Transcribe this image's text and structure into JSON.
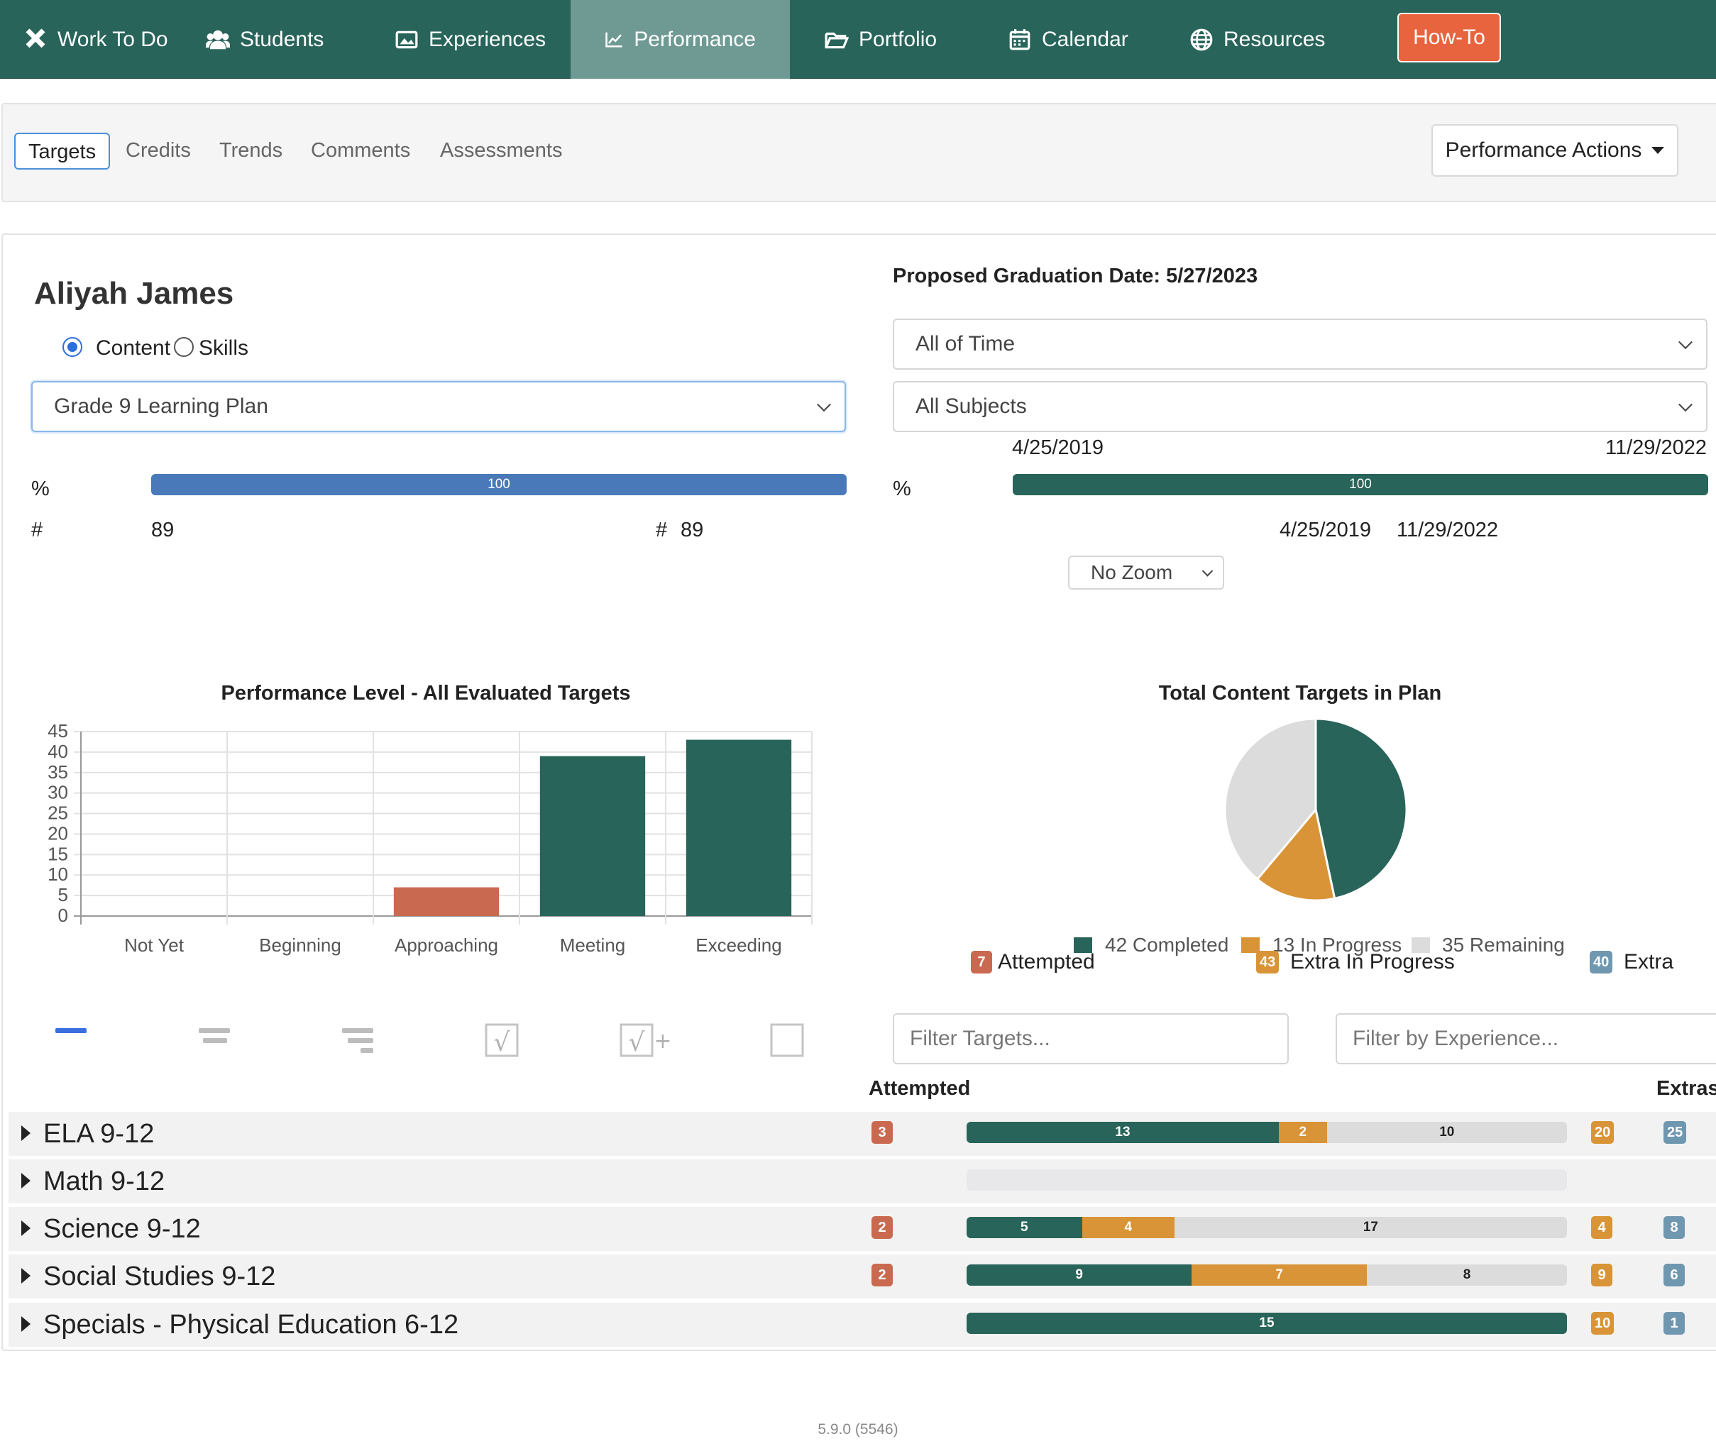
{
  "nav": {
    "items": [
      {
        "label": "Work To Do",
        "icon": "tools-icon"
      },
      {
        "label": "Students",
        "icon": "users-icon"
      },
      {
        "label": "Experiences",
        "icon": "image-icon"
      },
      {
        "label": "Performance",
        "icon": "chart-line-icon"
      },
      {
        "label": "Portfolio",
        "icon": "folder-open-icon"
      },
      {
        "label": "Calendar",
        "icon": "calendar-icon"
      },
      {
        "label": "Resources",
        "icon": "globe-icon"
      }
    ],
    "active": "Performance",
    "howto": "How-To",
    "colors": {
      "bar": "#29645a",
      "active": "#6f9a93",
      "howto": "#e8643f"
    }
  },
  "subtabs": {
    "items": [
      "Targets",
      "Credits",
      "Trends",
      "Comments",
      "Assessments"
    ],
    "active": "Targets",
    "actions": "Performance Actions"
  },
  "student": {
    "name": "Aliyah James",
    "mode_options": [
      "Content",
      "Skills"
    ],
    "mode_selected": "Content",
    "plan_select": "Grade 9 Learning Plan",
    "percent_symbol": "%",
    "hash_symbol": "#",
    "left_progress": {
      "percent": 100,
      "label": "100",
      "count_left": "89",
      "count_right": "89"
    },
    "graduation_label": "Proposed Graduation Date:",
    "graduation_date": "5/27/2023",
    "time_select": "All of Time",
    "subject_select": "All Subjects",
    "range_start": "4/25/2019",
    "range_end": "11/29/2022",
    "right_progress": {
      "percent": 100,
      "label": "100"
    },
    "range_start_2": "4/25/2019",
    "range_end_2": "11/29/2022",
    "zoom_select": "No Zoom"
  },
  "chart_data": [
    {
      "type": "bar",
      "title": "Performance Level - All Evaluated Targets",
      "categories": [
        "Not Yet",
        "Beginning",
        "Approaching",
        "Meeting",
        "Exceeding"
      ],
      "values": [
        0,
        0,
        7,
        39,
        43
      ],
      "colors": [
        "#29645a",
        "#29645a",
        "#c96a50",
        "#29645a",
        "#29645a"
      ],
      "ylim": [
        0,
        45
      ],
      "yticks": [
        0,
        5,
        10,
        15,
        20,
        25,
        30,
        35,
        40,
        45
      ],
      "grid": true,
      "xlabel": "",
      "ylabel": ""
    },
    {
      "type": "pie",
      "title": "Total Content Targets in Plan",
      "slices": [
        {
          "label": "42 Completed",
          "value": 42,
          "color": "#29645a"
        },
        {
          "label": "13 In Progress",
          "value": 13,
          "color": "#d89436"
        },
        {
          "label": "35 Remaining",
          "value": 35,
          "color": "#dcdcdc"
        }
      ],
      "legend": "bottom"
    }
  ],
  "summary_badges": [
    {
      "count": "7",
      "label": "Attempted",
      "color": "#c96a50"
    },
    {
      "count": "43",
      "label": "Extra In Progress",
      "color": "#d89436"
    },
    {
      "count": "40",
      "label": "Extra",
      "color": "#6f97b0"
    }
  ],
  "toolbar_icons": [
    "align-single-icon",
    "align-double-icon",
    "align-triple-icon",
    "checkbox-root-icon",
    "checkbox-root-plus-icon",
    "empty-checkbox-icon"
  ],
  "filters": {
    "targets_placeholder": "Filter Targets...",
    "experience_placeholder": "Filter by Experience..."
  },
  "table_headers": {
    "attempted": "Attempted",
    "extras": "Extras"
  },
  "subjects": [
    {
      "name": "ELA 9-12",
      "attempted": "3",
      "completed": 13,
      "in_progress": 2,
      "remaining": 10,
      "extra_in_progress": "20",
      "extra": "25"
    },
    {
      "name": "Math 9-12",
      "attempted": "",
      "completed": 0,
      "in_progress": 0,
      "remaining": 0,
      "extra_in_progress": "",
      "extra": ""
    },
    {
      "name": "Science 9-12",
      "attempted": "2",
      "completed": 5,
      "in_progress": 4,
      "remaining": 17,
      "extra_in_progress": "4",
      "extra": "8"
    },
    {
      "name": "Social Studies 9-12",
      "attempted": "2",
      "completed": 9,
      "in_progress": 7,
      "remaining": 8,
      "extra_in_progress": "9",
      "extra": "6"
    },
    {
      "name": "Specials - Physical Education 6-12",
      "attempted": "",
      "completed": 15,
      "in_progress": 0,
      "remaining": 0,
      "extra_in_progress": "10",
      "extra": "1"
    }
  ],
  "version": "5.9.0 (5546)"
}
